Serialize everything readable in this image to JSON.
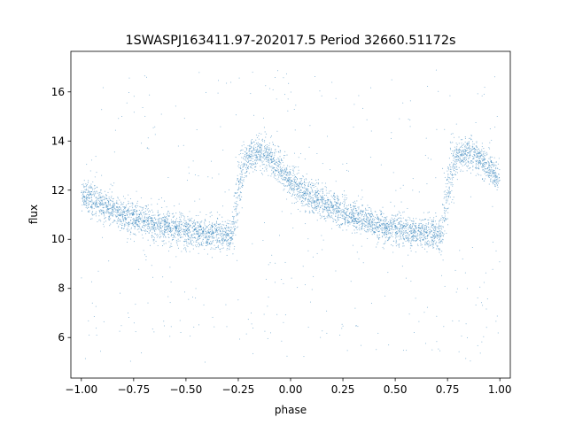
{
  "chart_data": {
    "type": "scatter",
    "title": "1SWASPJ163411.97-202017.5 Period 32660.51172s",
    "xlabel": "phase",
    "ylabel": "flux",
    "xlim": [
      -1.05,
      1.05
    ],
    "ylim": [
      4.35,
      17.65
    ],
    "x_ticks": [
      -1.0,
      -0.75,
      -0.5,
      -0.25,
      0.0,
      0.25,
      0.5,
      0.75,
      1.0
    ],
    "x_tick_labels": [
      "−1.00",
      "−0.75",
      "−0.50",
      "−0.25",
      "0.00",
      "0.25",
      "0.50",
      "0.75",
      "1.00"
    ],
    "y_ticks": [
      6,
      8,
      10,
      12,
      14,
      16
    ],
    "y_tick_labels": [
      "6",
      "8",
      "10",
      "12",
      "14",
      "16"
    ],
    "grid": false,
    "legend": "none",
    "marker_color": "#1f77b4",
    "series": [
      {
        "x": [
          -1.0,
          -0.95,
          -0.9,
          -0.85,
          -0.8,
          -0.75,
          -0.7,
          -0.65,
          -0.6,
          -0.55,
          -0.5,
          -0.45,
          -0.4,
          -0.35,
          -0.3,
          -0.28,
          -0.25,
          -0.22,
          -0.2,
          -0.15,
          -0.1,
          -0.05,
          0.0,
          0.05,
          0.1,
          0.15,
          0.2,
          0.25,
          0.3,
          0.35,
          0.4,
          0.45,
          0.5,
          0.55,
          0.6,
          0.65,
          0.7,
          0.72,
          0.75,
          0.78,
          0.8,
          0.85,
          0.9,
          0.95,
          1.0
        ],
        "y": [
          11.9,
          11.6,
          11.4,
          11.2,
          11.0,
          10.85,
          10.75,
          10.6,
          10.5,
          10.4,
          10.35,
          10.3,
          10.25,
          10.2,
          10.15,
          10.1,
          12.0,
          13.1,
          13.4,
          13.6,
          13.4,
          12.9,
          12.3,
          12.0,
          11.7,
          11.5,
          11.3,
          11.1,
          10.9,
          10.8,
          10.6,
          10.5,
          10.4,
          10.35,
          10.3,
          10.25,
          10.2,
          10.15,
          12.0,
          13.1,
          13.4,
          13.5,
          13.3,
          12.9,
          12.4
        ]
      }
    ]
  }
}
